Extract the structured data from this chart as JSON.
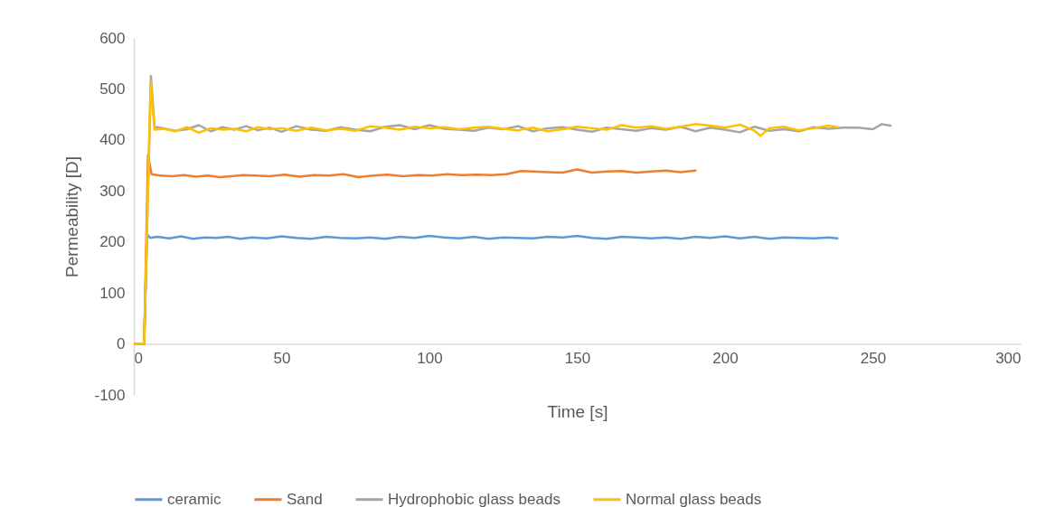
{
  "chart_data": {
    "type": "line",
    "xlabel": "Time [s]",
    "ylabel": "Permeability [D]",
    "xlim": [
      0,
      300
    ],
    "xticks": [
      0,
      50,
      100,
      150,
      200,
      250,
      300
    ],
    "ylim": [
      -100,
      600
    ],
    "yticks": [
      -100,
      0,
      100,
      200,
      300,
      400,
      500,
      600
    ],
    "grid": false,
    "legend": "bottom",
    "line_style": "solid",
    "marker": "none",
    "series": [
      {
        "name": "ceramic",
        "color": "#5b9bd5",
        "x": [
          0,
          3.5,
          4.5,
          5.5,
          8,
          12,
          16,
          20,
          24,
          28,
          32,
          36,
          40,
          45,
          50,
          55,
          60,
          65,
          70,
          75,
          80,
          85,
          90,
          95,
          100,
          105,
          110,
          115,
          120,
          125,
          130,
          135,
          140,
          145,
          150,
          155,
          160,
          165,
          170,
          175,
          180,
          185,
          190,
          195,
          200,
          205,
          210,
          215,
          220,
          225,
          230,
          235,
          238
        ],
        "values": [
          0,
          0,
          215,
          208,
          210,
          207,
          211,
          206,
          209,
          208,
          210,
          206,
          209,
          207,
          211,
          208,
          206,
          210,
          208,
          207,
          209,
          206,
          210,
          208,
          212,
          209,
          207,
          210,
          206,
          209,
          208,
          207,
          210,
          209,
          212,
          208,
          206,
          210,
          209,
          207,
          209,
          206,
          210,
          208,
          211,
          207,
          210,
          206,
          209,
          208,
          207,
          209,
          207
        ]
      },
      {
        "name": "Sand",
        "color": "#ed7d31",
        "x": [
          0,
          3.5,
          4.8,
          6,
          9,
          13,
          17,
          21,
          25,
          29,
          33,
          37,
          41,
          46,
          51,
          56,
          61,
          66,
          71,
          76,
          81,
          86,
          91,
          96,
          101,
          106,
          111,
          116,
          121,
          126,
          131,
          135,
          140,
          145,
          150,
          155,
          160,
          165,
          170,
          175,
          180,
          185,
          190
        ],
        "values": [
          0,
          0,
          370,
          333,
          330,
          329,
          331,
          328,
          330,
          327,
          329,
          331,
          330,
          329,
          332,
          328,
          331,
          330,
          333,
          327,
          330,
          332,
          329,
          331,
          330,
          333,
          331,
          332,
          331,
          333,
          339,
          338,
          337,
          336,
          342,
          336,
          338,
          339,
          336,
          338,
          340,
          337,
          340
        ]
      },
      {
        "name": "Hydrophobic glass beads",
        "color": "#a5a5a5",
        "x": [
          0,
          3.5,
          5.8,
          7,
          10,
          14,
          18,
          22,
          26,
          30,
          34,
          38,
          42,
          46,
          50,
          55,
          60,
          65,
          70,
          75,
          80,
          85,
          90,
          95,
          100,
          105,
          110,
          115,
          120,
          125,
          130,
          135,
          140,
          145,
          150,
          155,
          160,
          165,
          170,
          175,
          180,
          185,
          190,
          195,
          200,
          205,
          210,
          215,
          220,
          225,
          230,
          235,
          240,
          245,
          250,
          253,
          256
        ],
        "values": [
          0,
          0,
          525,
          426,
          423,
          418,
          421,
          429,
          417,
          425,
          420,
          427,
          419,
          424,
          416,
          427,
          420,
          418,
          425,
          420,
          417,
          426,
          429,
          421,
          429,
          422,
          420,
          418,
          424,
          421,
          427,
          417,
          423,
          425,
          420,
          416,
          424,
          421,
          418,
          423,
          420,
          426,
          417,
          424,
          420,
          415,
          426,
          418,
          421,
          417,
          425,
          422,
          424,
          424,
          421,
          431,
          428
        ]
      },
      {
        "name": "Normal glass beads",
        "color": "#ffc000",
        "x": [
          0,
          3.5,
          5.7,
          7,
          10,
          14,
          18,
          22,
          26,
          30,
          34,
          38,
          42,
          46,
          50,
          55,
          60,
          65,
          70,
          75,
          80,
          85,
          90,
          95,
          100,
          105,
          110,
          115,
          120,
          125,
          130,
          135,
          140,
          145,
          150,
          155,
          160,
          165,
          170,
          175,
          180,
          185,
          190,
          195,
          200,
          205,
          210,
          212,
          215,
          220,
          225,
          230,
          235,
          238
        ],
        "values": [
          0,
          0,
          515,
          420,
          422,
          417,
          425,
          414,
          423,
          420,
          422,
          417,
          425,
          421,
          423,
          418,
          424,
          419,
          422,
          418,
          427,
          424,
          420,
          426,
          423,
          425,
          421,
          424,
          426,
          422,
          419,
          424,
          417,
          421,
          426,
          423,
          420,
          429,
          424,
          427,
          422,
          426,
          431,
          428,
          424,
          430,
          418,
          408,
          423,
          426,
          419,
          423,
          428,
          425
        ]
      }
    ]
  }
}
